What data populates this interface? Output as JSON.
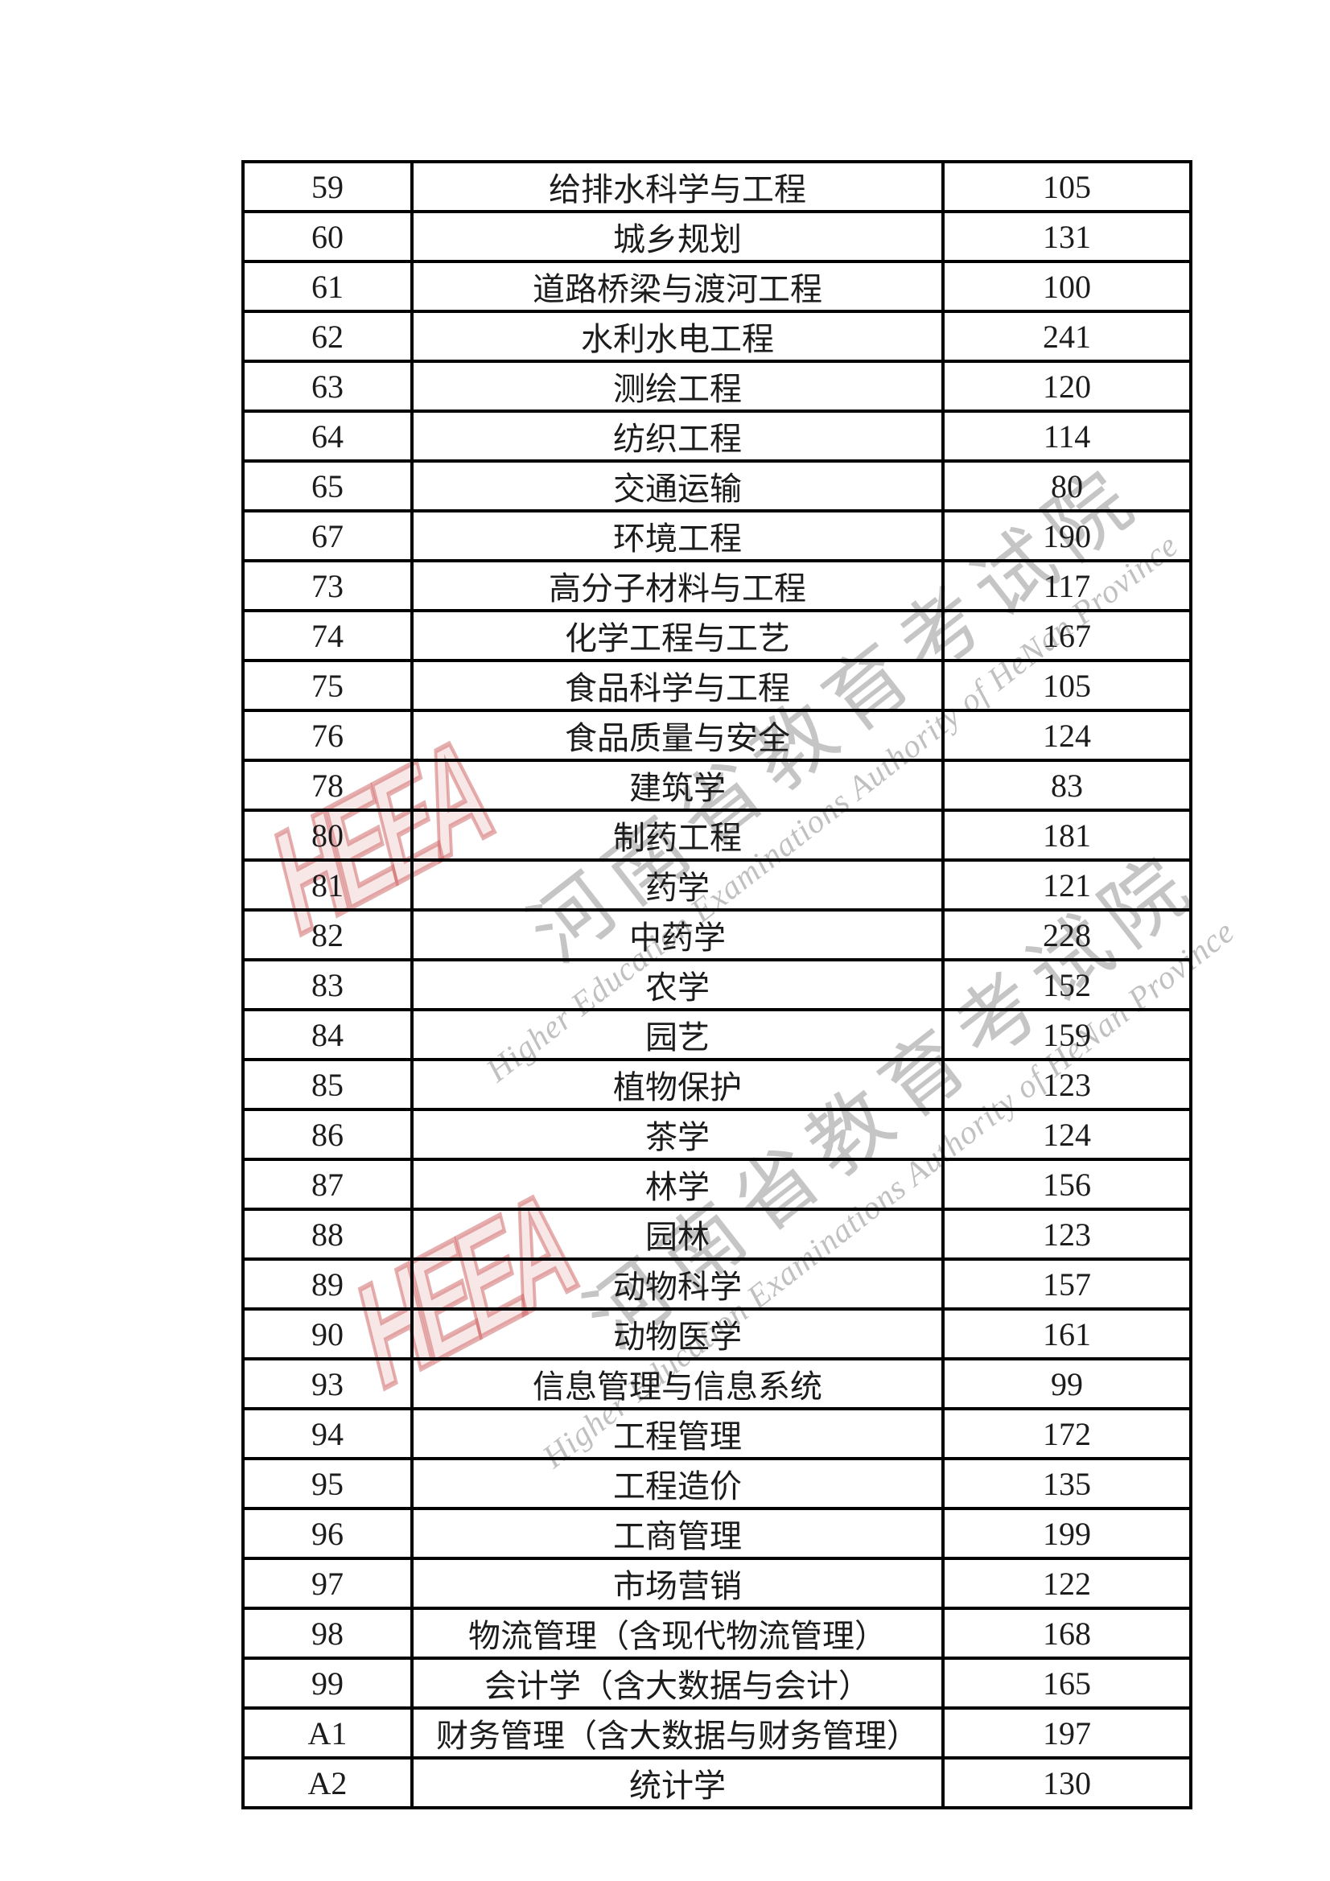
{
  "watermark": {
    "logo_text": "HEEA",
    "cn_text": "河南省教育考试院",
    "en_text": "Higher Education Examinations Authority of HeNan Province",
    "gray_color": "#9b9b9b",
    "red_color": "#cd5f5f"
  },
  "table": {
    "rows": [
      {
        "code": "59",
        "major": "给排水科学与工程",
        "count": "105"
      },
      {
        "code": "60",
        "major": "城乡规划",
        "count": "131"
      },
      {
        "code": "61",
        "major": "道路桥梁与渡河工程",
        "count": "100"
      },
      {
        "code": "62",
        "major": "水利水电工程",
        "count": "241"
      },
      {
        "code": "63",
        "major": "测绘工程",
        "count": "120"
      },
      {
        "code": "64",
        "major": "纺织工程",
        "count": "114"
      },
      {
        "code": "65",
        "major": "交通运输",
        "count": "80"
      },
      {
        "code": "67",
        "major": "环境工程",
        "count": "190"
      },
      {
        "code": "73",
        "major": "高分子材料与工程",
        "count": "117"
      },
      {
        "code": "74",
        "major": "化学工程与工艺",
        "count": "167"
      },
      {
        "code": "75",
        "major": "食品科学与工程",
        "count": "105"
      },
      {
        "code": "76",
        "major": "食品质量与安全",
        "count": "124"
      },
      {
        "code": "78",
        "major": "建筑学",
        "count": "83"
      },
      {
        "code": "80",
        "major": "制药工程",
        "count": "181"
      },
      {
        "code": "81",
        "major": "药学",
        "count": "121"
      },
      {
        "code": "82",
        "major": "中药学",
        "count": "228"
      },
      {
        "code": "83",
        "major": "农学",
        "count": "152"
      },
      {
        "code": "84",
        "major": "园艺",
        "count": "159"
      },
      {
        "code": "85",
        "major": "植物保护",
        "count": "123"
      },
      {
        "code": "86",
        "major": "茶学",
        "count": "124"
      },
      {
        "code": "87",
        "major": "林学",
        "count": "156"
      },
      {
        "code": "88",
        "major": "园林",
        "count": "123"
      },
      {
        "code": "89",
        "major": "动物科学",
        "count": "157"
      },
      {
        "code": "90",
        "major": "动物医学",
        "count": "161"
      },
      {
        "code": "93",
        "major": "信息管理与信息系统",
        "count": "99"
      },
      {
        "code": "94",
        "major": "工程管理",
        "count": "172"
      },
      {
        "code": "95",
        "major": "工程造价",
        "count": "135"
      },
      {
        "code": "96",
        "major": "工商管理",
        "count": "199"
      },
      {
        "code": "97",
        "major": "市场营销",
        "count": "122"
      },
      {
        "code": "98",
        "major": "物流管理（含现代物流管理）",
        "count": "168"
      },
      {
        "code": "99",
        "major": "会计学（含大数据与会计）",
        "count": "165"
      },
      {
        "code": "A1",
        "major": "财务管理（含大数据与财务管理）",
        "count": "197"
      },
      {
        "code": "A2",
        "major": "统计学",
        "count": "130"
      }
    ]
  }
}
